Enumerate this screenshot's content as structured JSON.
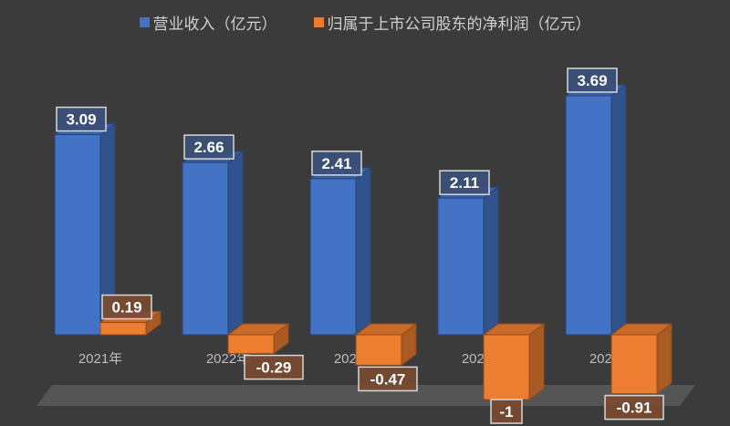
{
  "chart_data": {
    "type": "bar",
    "style": "3d-clustered-column",
    "categories": [
      "2021年",
      "2022年",
      "2023年",
      "2024年",
      "2025年"
    ],
    "series": [
      {
        "name": "营业收入（亿元）",
        "color": "#4472c4",
        "values": [
          3.09,
          2.66,
          2.41,
          2.11,
          3.69
        ]
      },
      {
        "name": "归属于上市公司股东的净利润（亿元）",
        "color": "#ed7d31",
        "values": [
          0.19,
          -0.29,
          -0.47,
          -1,
          -0.91
        ]
      }
    ],
    "data_labels": [
      [
        "3.09",
        "2.66",
        "2.41",
        "2.11",
        "3.69"
      ],
      [
        "0.19",
        "-0.29",
        "-0.47",
        "-1",
        "-0.91"
      ]
    ],
    "legend_position": "top",
    "grid": false,
    "background": "#3b3b3b"
  }
}
